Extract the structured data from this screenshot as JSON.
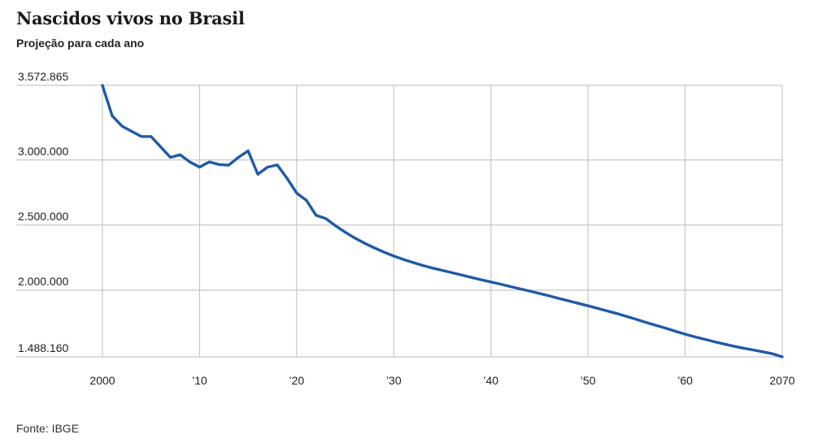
{
  "header": {
    "title": "Nascidos vivos no Brasil",
    "subtitle": "Projeção para cada ano"
  },
  "footer": {
    "source": "Fonte: IBGE"
  },
  "colors": {
    "line": "#1f5aa6",
    "grid": "#c8c8c8"
  },
  "chart_data": {
    "type": "line",
    "title": "Nascidos vivos no Brasil",
    "subtitle": "Projeção para cada ano",
    "xlabel": "",
    "ylabel": "",
    "xlim": [
      2000,
      2070
    ],
    "ylim": [
      1488160,
      3572865
    ],
    "grid": true,
    "x_ticks": [
      {
        "value": 2000,
        "label": "2000"
      },
      {
        "value": 2010,
        "label": "’10"
      },
      {
        "value": 2020,
        "label": "’20"
      },
      {
        "value": 2030,
        "label": "’30"
      },
      {
        "value": 2040,
        "label": "’40"
      },
      {
        "value": 2050,
        "label": "’50"
      },
      {
        "value": 2060,
        "label": "’60"
      },
      {
        "value": 2070,
        "label": "2070"
      }
    ],
    "y_ticks": [
      {
        "value": 3572865,
        "label": "3.572.865"
      },
      {
        "value": 3000000,
        "label": "3.000.000"
      },
      {
        "value": 2500000,
        "label": "2.500.000"
      },
      {
        "value": 2000000,
        "label": "2.000.000"
      },
      {
        "value": 1488160,
        "label": "1.488.160"
      }
    ],
    "x": [
      2000,
      2001,
      2002,
      2003,
      2004,
      2005,
      2006,
      2007,
      2008,
      2009,
      2010,
      2011,
      2012,
      2013,
      2014,
      2015,
      2016,
      2017,
      2018,
      2019,
      2020,
      2021,
      2022,
      2023,
      2024,
      2025,
      2026,
      2027,
      2028,
      2029,
      2030,
      2031,
      2032,
      2033,
      2034,
      2035,
      2036,
      2037,
      2038,
      2039,
      2040,
      2041,
      2042,
      2043,
      2044,
      2045,
      2046,
      2047,
      2048,
      2049,
      2050,
      2051,
      2052,
      2053,
      2054,
      2055,
      2056,
      2057,
      2058,
      2059,
      2060,
      2061,
      2062,
      2063,
      2064,
      2065,
      2066,
      2067,
      2068,
      2069,
      2070
    ],
    "values": [
      3572865,
      3340000,
      3260000,
      3220000,
      3180000,
      3180000,
      3100000,
      3020000,
      3040000,
      2985000,
      2945000,
      2985000,
      2965000,
      2960000,
      3020000,
      3070000,
      2890000,
      2945000,
      2962000,
      2860000,
      2745000,
      2690000,
      2575000,
      2550000,
      2495000,
      2445000,
      2400000,
      2360000,
      2325000,
      2292000,
      2262000,
      2236000,
      2212000,
      2190000,
      2170000,
      2152000,
      2134000,
      2116000,
      2098000,
      2080000,
      2063000,
      2046000,
      2028000,
      2010000,
      1993000,
      1975000,
      1956000,
      1937000,
      1918000,
      1899000,
      1880000,
      1860000,
      1840000,
      1820000,
      1798000,
      1775000,
      1752000,
      1730000,
      1708000,
      1685000,
      1662000,
      1642000,
      1623000,
      1604000,
      1587000,
      1570000,
      1555000,
      1541000,
      1527000,
      1512000,
      1488160
    ]
  }
}
